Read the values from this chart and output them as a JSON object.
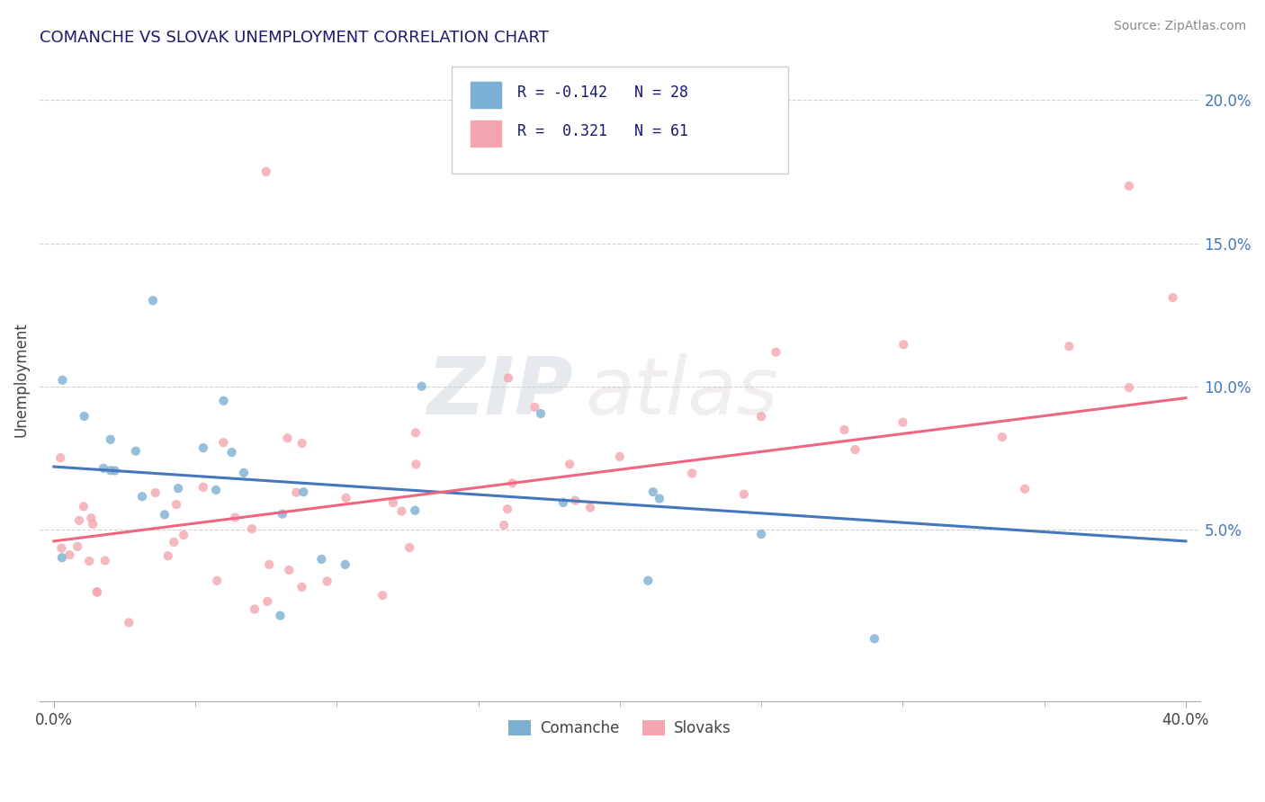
{
  "title": "COMANCHE VS SLOVAK UNEMPLOYMENT CORRELATION CHART",
  "source_text": "Source: ZipAtlas.com",
  "ylabel": "Unemployment",
  "xlim": [
    -0.005,
    0.405
  ],
  "ylim": [
    -0.01,
    0.215
  ],
  "xtick_positions": [
    0.0,
    0.4
  ],
  "xtick_labels": [
    "0.0%",
    "40.0%"
  ],
  "xtick_minor": [
    0.05,
    0.1,
    0.15,
    0.2,
    0.25,
    0.3,
    0.35
  ],
  "yticks": [
    0.05,
    0.1,
    0.15,
    0.2
  ],
  "ytick_labels": [
    "5.0%",
    "10.0%",
    "15.0%",
    "20.0%"
  ],
  "comanche_color": "#7BAFD4",
  "slovak_color": "#F4A6B0",
  "comanche_line_color": "#4477BB",
  "slovak_line_color": "#EE6680",
  "watermark_zip": "ZIP",
  "watermark_atlas": "atlas",
  "R_comanche": -0.142,
  "N_comanche": 28,
  "R_slovak": 0.321,
  "N_slovak": 61,
  "background_color": "#FFFFFF",
  "grid_color": "#CCCCCC",
  "title_color": "#1A1A6E",
  "axis_label_color": "#444444",
  "right_tick_color": "#4477BB",
  "source_color": "#888888",
  "legend_label_color": "#1A1A6E",
  "comanche_trend_start": 0.072,
  "comanche_trend_end": 0.046,
  "slovak_trend_start": 0.046,
  "slovak_trend_end": 0.096
}
